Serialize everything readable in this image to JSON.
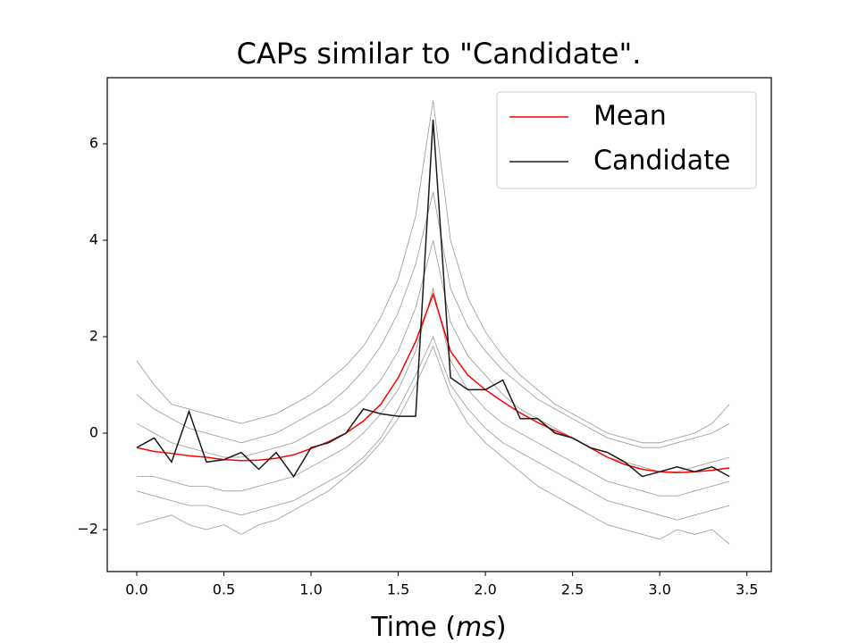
{
  "chart_data": {
    "type": "line",
    "title": "CAPs similar to \"Candidate\".",
    "xlabel": [
      "Time (",
      "ms",
      ")"
    ],
    "x": [
      0,
      0.1,
      0.2,
      0.3,
      0.4,
      0.5,
      0.6,
      0.7,
      0.8,
      0.9,
      1.0,
      1.1,
      1.2,
      1.3,
      1.4,
      1.5,
      1.6,
      1.7,
      1.8,
      1.9,
      2.0,
      2.1,
      2.2,
      2.3,
      2.4,
      2.5,
      2.6,
      2.7,
      2.8,
      2.9,
      3.0,
      3.1,
      3.2,
      3.3,
      3.4
    ],
    "traces": [
      {
        "color": "#999999",
        "values": [
          0.8,
          0.5,
          0.3,
          0.1,
          0.0,
          -0.1,
          -0.2,
          -0.1,
          0.0,
          0.2,
          0.4,
          0.6,
          0.9,
          1.3,
          1.8,
          2.5,
          3.5,
          5.0,
          3.0,
          2.2,
          1.7,
          1.3,
          1.0,
          0.7,
          0.5,
          0.3,
          0.1,
          -0.1,
          -0.2,
          -0.3,
          -0.3,
          -0.2,
          -0.1,
          0.0,
          0.2
        ]
      },
      {
        "color": "#999999",
        "values": [
          -1.2,
          -1.3,
          -1.4,
          -1.5,
          -1.5,
          -1.6,
          -1.7,
          -1.6,
          -1.5,
          -1.4,
          -1.2,
          -1.0,
          -0.8,
          -0.5,
          -0.1,
          0.5,
          1.2,
          2.0,
          1.0,
          0.5,
          0.1,
          -0.2,
          -0.4,
          -0.6,
          -0.8,
          -1.0,
          -1.2,
          -1.4,
          -1.5,
          -1.6,
          -1.7,
          -1.8,
          -1.7,
          -1.6,
          -1.5
        ]
      },
      {
        "color": "#999999",
        "values": [
          1.5,
          1.0,
          0.6,
          0.5,
          0.4,
          0.3,
          0.2,
          0.3,
          0.4,
          0.6,
          0.8,
          1.1,
          1.4,
          1.8,
          2.4,
          3.2,
          4.5,
          6.9,
          4.0,
          2.8,
          2.1,
          1.6,
          1.2,
          0.9,
          0.6,
          0.4,
          0.2,
          0.0,
          -0.1,
          -0.2,
          -0.2,
          -0.1,
          0.0,
          0.2,
          0.6
        ]
      },
      {
        "color": "#999999",
        "values": [
          -1.9,
          -1.8,
          -1.7,
          -1.9,
          -2.0,
          -1.9,
          -2.1,
          -1.9,
          -1.8,
          -1.6,
          -1.4,
          -1.2,
          -0.9,
          -0.6,
          -0.2,
          0.3,
          1.0,
          1.8,
          0.8,
          0.2,
          -0.2,
          -0.5,
          -0.8,
          -1.1,
          -1.3,
          -1.5,
          -1.7,
          -1.9,
          -2.0,
          -2.1,
          -2.2,
          -2.0,
          -2.1,
          -2.0,
          -2.3
        ]
      },
      {
        "color": "#999999",
        "values": [
          0.2,
          0.0,
          -0.2,
          -0.3,
          -0.4,
          -0.5,
          -0.5,
          -0.4,
          -0.3,
          -0.2,
          0.0,
          0.2,
          0.4,
          0.7,
          1.1,
          1.7,
          2.6,
          4.0,
          2.3,
          1.6,
          1.2,
          0.8,
          0.5,
          0.3,
          0.1,
          -0.1,
          -0.3,
          -0.5,
          -0.6,
          -0.7,
          -0.8,
          -0.8,
          -0.7,
          -0.6,
          -0.5
        ]
      },
      {
        "color": "#999999",
        "values": [
          -0.9,
          -0.9,
          -1.0,
          -1.1,
          -1.1,
          -1.2,
          -1.2,
          -1.1,
          -1.0,
          -0.9,
          -0.7,
          -0.5,
          -0.3,
          0.0,
          0.4,
          0.9,
          1.7,
          3.0,
          1.5,
          0.9,
          0.5,
          0.2,
          0.0,
          -0.2,
          -0.4,
          -0.6,
          -0.8,
          -1.0,
          -1.1,
          -1.2,
          -1.3,
          -1.3,
          -1.2,
          -1.1,
          -1.0
        ]
      }
    ],
    "series": [
      {
        "name": "Mean",
        "color": "#ff0000",
        "values": [
          -0.3,
          -0.38,
          -0.42,
          -0.47,
          -0.5,
          -0.55,
          -0.57,
          -0.56,
          -0.52,
          -0.45,
          -0.32,
          -0.18,
          0.0,
          0.25,
          0.6,
          1.15,
          1.9,
          2.88,
          1.7,
          1.2,
          0.9,
          0.65,
          0.42,
          0.22,
          0.05,
          -0.1,
          -0.3,
          -0.5,
          -0.65,
          -0.75,
          -0.8,
          -0.82,
          -0.8,
          -0.77,
          -0.72
        ]
      },
      {
        "name": "Candidate",
        "color": "#1a1a1a",
        "values": [
          -0.3,
          -0.1,
          -0.6,
          0.45,
          -0.6,
          -0.55,
          -0.4,
          -0.75,
          -0.4,
          -0.9,
          -0.3,
          -0.2,
          0.0,
          0.5,
          0.4,
          0.35,
          0.35,
          6.5,
          1.15,
          0.9,
          0.9,
          1.1,
          0.3,
          0.3,
          0.0,
          -0.1,
          -0.3,
          -0.4,
          -0.6,
          -0.9,
          -0.8,
          -0.7,
          -0.8,
          -0.7,
          -0.9
        ]
      }
    ],
    "xlim": [
      -0.169,
      3.64
    ],
    "ylim": [
      -2.87,
      7.37
    ],
    "xticks": [
      {
        "value": 0,
        "label": "0.0"
      },
      {
        "value": 0.5,
        "label": "0.5"
      },
      {
        "value": 1,
        "label": "1.0"
      },
      {
        "value": 1.5,
        "label": "1.5"
      },
      {
        "value": 2,
        "label": "2.0"
      },
      {
        "value": 2.5,
        "label": "2.5"
      },
      {
        "value": 3,
        "label": "3.0"
      },
      {
        "value": 3.5,
        "label": "3.5"
      }
    ],
    "yticks": [
      {
        "value": -2,
        "label": "−2"
      },
      0,
      2,
      4,
      6
    ],
    "legend": "upper right",
    "grid": false
  }
}
